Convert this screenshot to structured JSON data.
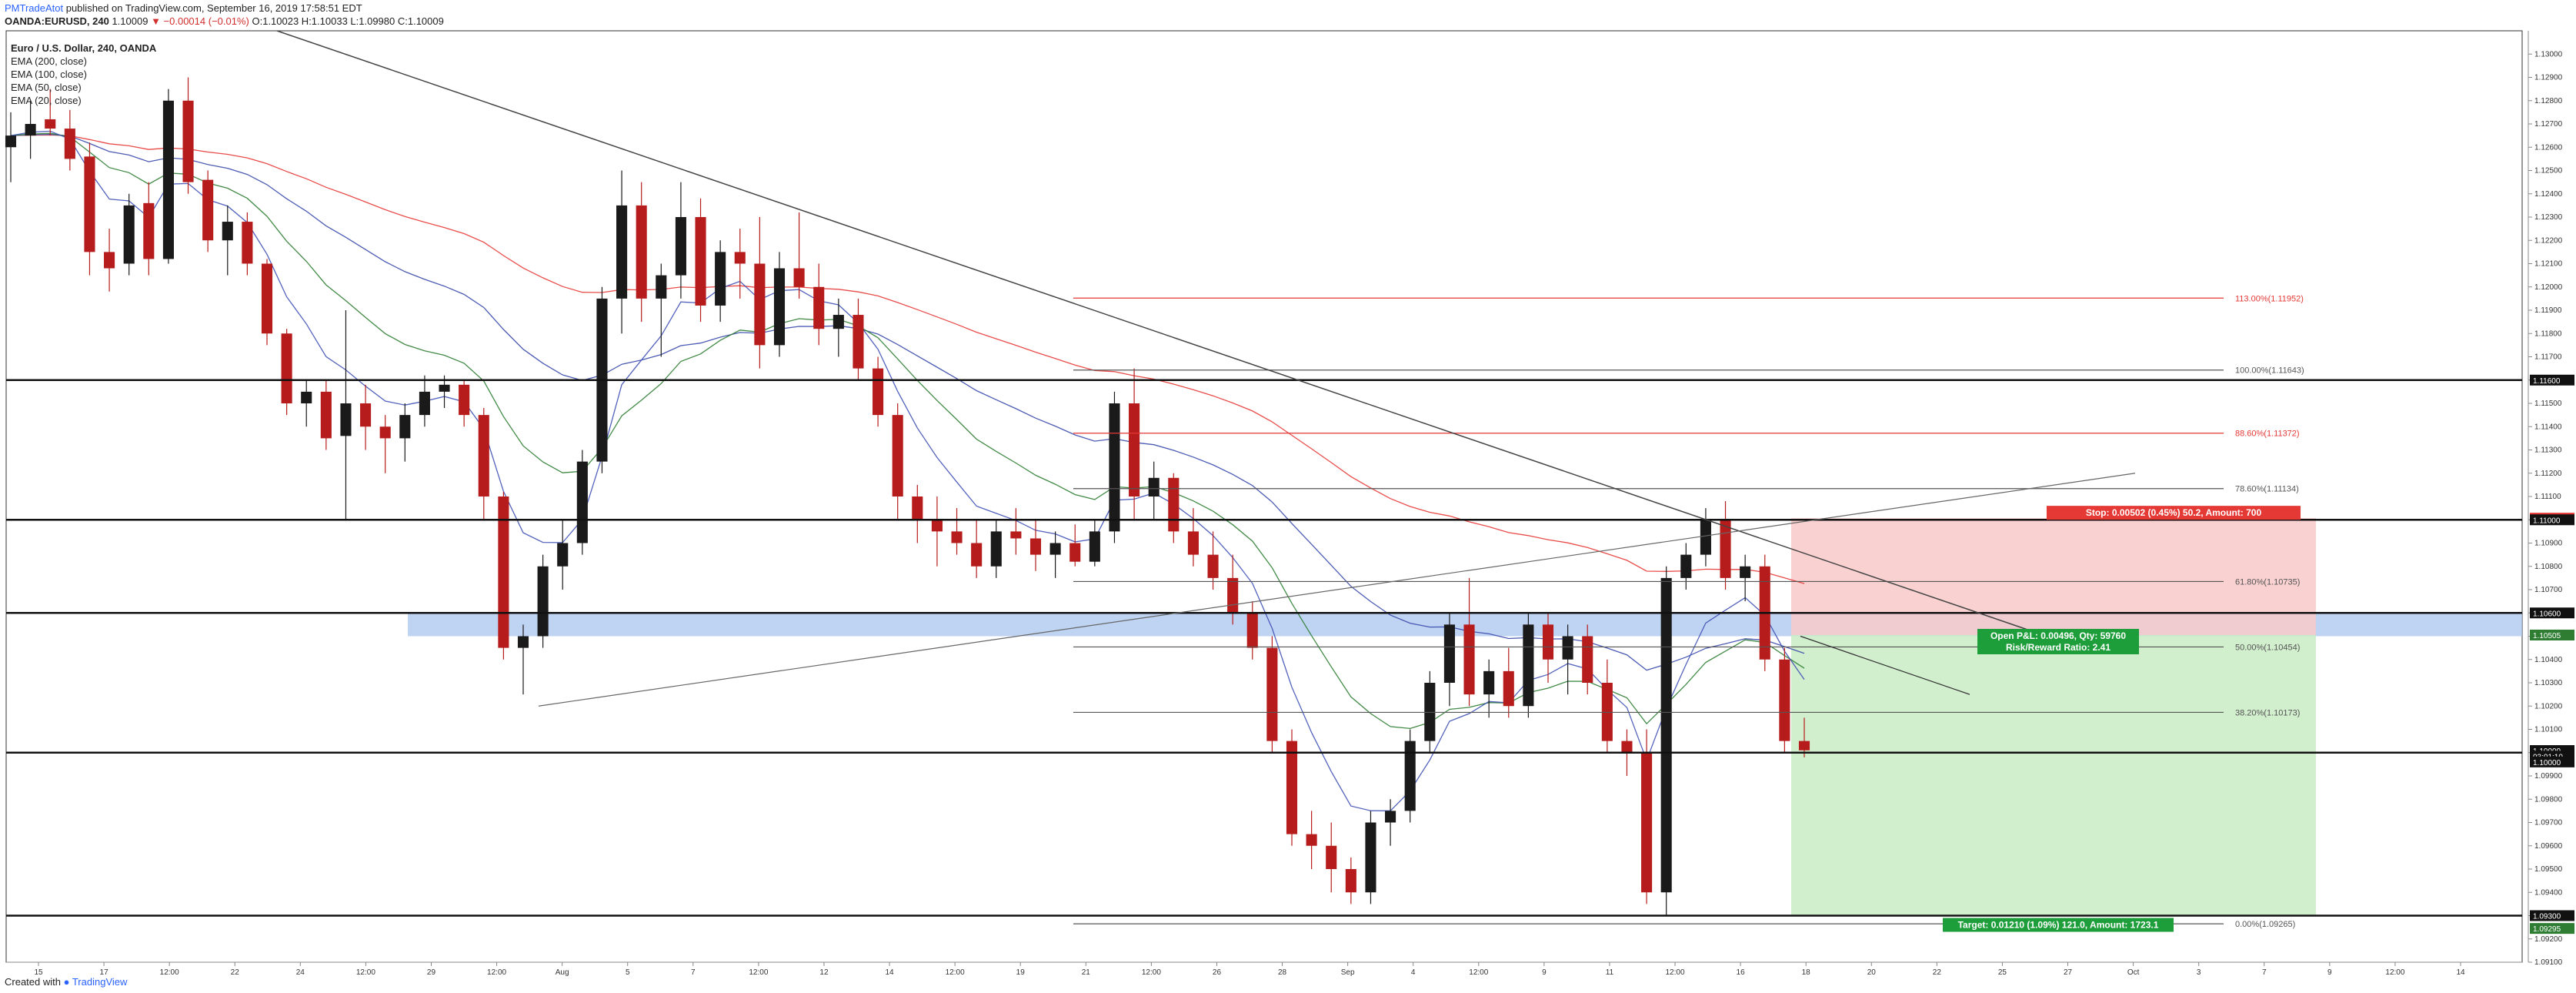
{
  "header": {
    "user": "PMTradeAtot",
    "published": " published on TradingView.com, September 16, 2019 17:58:51 EDT",
    "symbol_line": "OANDA:EURUSD, 240",
    "price_main": "1.10009",
    "change": "▼ −0.00014 (−0.01%)",
    "ohlc": "O:1.10023 H:1.10033 L:1.09980 C:1.10009"
  },
  "legend": {
    "title": "Euro / U.S. Dollar, 240, OANDA",
    "items": [
      "EMA (200, close)",
      "EMA (100, close)",
      "EMA (50, close)",
      "EMA (20, close)"
    ]
  },
  "footer": {
    "created": "Created with",
    "brand": "TradingView"
  },
  "colors": {
    "up": "#1a1a1a",
    "down": "#b71c1c",
    "ema200": "#e53935",
    "ema100": "#3949ab",
    "ema50": "#2e7d32",
    "ema20": "#3f51b5",
    "stop_zone": "#f8c9c9",
    "target_zone": "#c9ebc4"
  },
  "chart_data": {
    "type": "candlestick",
    "symbol": "EURUSD",
    "timeframe": "240",
    "ylim": [
      1.091,
      1.131
    ],
    "y_ticks": [
      "1.09100",
      "1.09200",
      "1.09300",
      "1.09400",
      "1.09500",
      "1.09600",
      "1.09700",
      "1.09800",
      "1.09900",
      "1.10000",
      "1.10100",
      "1.10200",
      "1.10300",
      "1.10400",
      "1.10500",
      "1.10600",
      "1.10700",
      "1.10800",
      "1.10900",
      "1.11000",
      "1.11100",
      "1.11200",
      "1.11300",
      "1.11400",
      "1.11500",
      "1.11600",
      "1.11700",
      "1.11800",
      "1.11900",
      "1.12000",
      "1.12100",
      "1.12200",
      "1.12300",
      "1.12400",
      "1.12500",
      "1.12600",
      "1.12700",
      "1.12800",
      "1.12900",
      "1.13000"
    ],
    "x_ticks": [
      "15",
      "17",
      "12:00",
      "22",
      "24",
      "12:00",
      "29",
      "12:00",
      "Aug",
      "5",
      "7",
      "12:00",
      "12",
      "14",
      "12:00",
      "19",
      "21",
      "12:00",
      "26",
      "28",
      "Sep",
      "4",
      "12:00",
      "9",
      "11",
      "12:00",
      "16",
      "18",
      "20",
      "22",
      "25",
      "27",
      "Oct",
      "3",
      "7",
      "9",
      "12:00",
      "14"
    ],
    "price_tags": [
      "1.11600",
      "1.11007",
      "1.11000",
      "1.10600",
      "1.10505",
      "1.10009",
      "03:01:10",
      "1.10000",
      "1.09300",
      "1.09295"
    ],
    "fib_levels": [
      {
        "label": "113.00%(1.11952)",
        "price": 1.11952,
        "color": "#e53935"
      },
      {
        "label": "100.00%(1.11643)",
        "price": 1.11643,
        "color": "#555555"
      },
      {
        "label": "88.60%(1.11372)",
        "price": 1.11372,
        "color": "#e53935"
      },
      {
        "label": "78.60%(1.11134)",
        "price": 1.11134,
        "color": "#555555"
      },
      {
        "label": "61.80%(1.10735)",
        "price": 1.10735,
        "color": "#555555"
      },
      {
        "label": "50.00%(1.10454)",
        "price": 1.10454,
        "color": "#555555"
      },
      {
        "label": "38.20%(1.10173)",
        "price": 1.10173,
        "color": "#555555"
      },
      {
        "label": "0.00%(1.09265)",
        "price": 1.09265,
        "color": "#555555"
      }
    ],
    "horizontal_levels": [
      1.116,
      1.11,
      1.106,
      1.1,
      1.093
    ],
    "support_zone": [
      1.105,
      1.106
    ],
    "position": {
      "entry": 1.10505,
      "stop": 1.11007,
      "target": 1.093,
      "stop_label": "Stop: 0.00502 (0.45%) 50.2, Amount: 700",
      "pnl_label": "Open P&L: 0.00496, Qty: 59760",
      "rr_label": "Risk/Reward Ratio: 2.41",
      "target_label": "Target: 0.01210 (1.09%) 121.0, Amount: 1723.1"
    },
    "candles": [
      [
        1.126,
        1.1275,
        1.1245,
        1.1265
      ],
      [
        1.1265,
        1.128,
        1.1255,
        1.127
      ],
      [
        1.1272,
        1.1285,
        1.1265,
        1.1268
      ],
      [
        1.1268,
        1.1276,
        1.125,
        1.1255
      ],
      [
        1.1256,
        1.1262,
        1.1205,
        1.1215
      ],
      [
        1.1215,
        1.1225,
        1.1198,
        1.1208
      ],
      [
        1.121,
        1.124,
        1.1205,
        1.1235
      ],
      [
        1.1236,
        1.1245,
        1.1205,
        1.1212
      ],
      [
        1.1212,
        1.1285,
        1.121,
        1.128
      ],
      [
        1.128,
        1.129,
        1.124,
        1.1245
      ],
      [
        1.1246,
        1.125,
        1.1215,
        1.122
      ],
      [
        1.122,
        1.1235,
        1.1205,
        1.1228
      ],
      [
        1.1228,
        1.1232,
        1.1205,
        1.121
      ],
      [
        1.121,
        1.1212,
        1.1175,
        1.118
      ],
      [
        1.118,
        1.1182,
        1.1145,
        1.115
      ],
      [
        1.115,
        1.116,
        1.114,
        1.1155
      ],
      [
        1.1155,
        1.116,
        1.113,
        1.1135
      ],
      [
        1.1136,
        1.119,
        1.11,
        1.115
      ],
      [
        1.115,
        1.1158,
        1.113,
        1.114
      ],
      [
        1.114,
        1.1145,
        1.112,
        1.1135
      ],
      [
        1.1135,
        1.115,
        1.1125,
        1.1145
      ],
      [
        1.1145,
        1.1162,
        1.114,
        1.1155
      ],
      [
        1.1155,
        1.1162,
        1.1148,
        1.1158
      ],
      [
        1.1158,
        1.116,
        1.114,
        1.1145
      ],
      [
        1.1145,
        1.1148,
        1.11,
        1.111
      ],
      [
        1.111,
        1.1112,
        1.104,
        1.1045
      ],
      [
        1.1045,
        1.1055,
        1.1025,
        1.105
      ],
      [
        1.105,
        1.1085,
        1.1045,
        1.108
      ],
      [
        1.108,
        1.11,
        1.107,
        1.109
      ],
      [
        1.109,
        1.113,
        1.1085,
        1.1125
      ],
      [
        1.1125,
        1.12,
        1.112,
        1.1195
      ],
      [
        1.1195,
        1.125,
        1.118,
        1.1235
      ],
      [
        1.1235,
        1.1245,
        1.1185,
        1.1195
      ],
      [
        1.1195,
        1.121,
        1.117,
        1.1205
      ],
      [
        1.1205,
        1.1245,
        1.1195,
        1.123
      ],
      [
        1.123,
        1.1238,
        1.1185,
        1.1192
      ],
      [
        1.1192,
        1.122,
        1.1185,
        1.1215
      ],
      [
        1.1215,
        1.1225,
        1.1195,
        1.121
      ],
      [
        1.121,
        1.123,
        1.1165,
        1.1175
      ],
      [
        1.1175,
        1.1215,
        1.117,
        1.1208
      ],
      [
        1.1208,
        1.1232,
        1.1195,
        1.12
      ],
      [
        1.12,
        1.121,
        1.1175,
        1.1182
      ],
      [
        1.1182,
        1.1195,
        1.117,
        1.1188
      ],
      [
        1.1188,
        1.1195,
        1.116,
        1.1165
      ],
      [
        1.1165,
        1.117,
        1.114,
        1.1145
      ],
      [
        1.1145,
        1.115,
        1.11,
        1.111
      ],
      [
        1.111,
        1.1115,
        1.109,
        1.11
      ],
      [
        1.11,
        1.111,
        1.108,
        1.1095
      ],
      [
        1.1095,
        1.1105,
        1.1085,
        1.109
      ],
      [
        1.109,
        1.11,
        1.1075,
        1.108
      ],
      [
        1.108,
        1.11,
        1.1075,
        1.1095
      ],
      [
        1.1095,
        1.1105,
        1.1085,
        1.1092
      ],
      [
        1.1092,
        1.11,
        1.1078,
        1.1085
      ],
      [
        1.1085,
        1.1095,
        1.1075,
        1.109
      ],
      [
        1.109,
        1.1098,
        1.108,
        1.1082
      ],
      [
        1.1082,
        1.11,
        1.108,
        1.1095
      ],
      [
        1.1095,
        1.1155,
        1.109,
        1.115
      ],
      [
        1.115,
        1.1165,
        1.11,
        1.111
      ],
      [
        1.111,
        1.1125,
        1.11,
        1.1118
      ],
      [
        1.1118,
        1.112,
        1.109,
        1.1095
      ],
      [
        1.1095,
        1.1105,
        1.108,
        1.1085
      ],
      [
        1.1085,
        1.1095,
        1.107,
        1.1075
      ],
      [
        1.1075,
        1.1085,
        1.1055,
        1.106
      ],
      [
        1.106,
        1.1065,
        1.104,
        1.1045
      ],
      [
        1.1045,
        1.105,
        1.1,
        1.1005
      ],
      [
        1.1005,
        1.101,
        1.096,
        1.0965
      ],
      [
        1.0965,
        1.0975,
        1.095,
        1.096
      ],
      [
        1.096,
        1.097,
        1.094,
        1.095
      ],
      [
        1.095,
        1.0955,
        1.0935,
        1.094
      ],
      [
        1.094,
        1.0975,
        1.0935,
        1.097
      ],
      [
        1.097,
        1.098,
        1.096,
        1.0975
      ],
      [
        1.0975,
        1.101,
        1.097,
        1.1005
      ],
      [
        1.1005,
        1.1035,
        1.1,
        1.103
      ],
      [
        1.103,
        1.106,
        1.102,
        1.1055
      ],
      [
        1.1055,
        1.1075,
        1.102,
        1.1025
      ],
      [
        1.1025,
        1.104,
        1.1015,
        1.1035
      ],
      [
        1.1035,
        1.1045,
        1.1015,
        1.102
      ],
      [
        1.102,
        1.106,
        1.1015,
        1.1055
      ],
      [
        1.1055,
        1.106,
        1.103,
        1.104
      ],
      [
        1.104,
        1.1055,
        1.1025,
        1.105
      ],
      [
        1.105,
        1.1055,
        1.1025,
        1.103
      ],
      [
        1.103,
        1.104,
        1.1,
        1.1005
      ],
      [
        1.1005,
        1.101,
        1.099,
        1.1
      ],
      [
        1.1,
        1.101,
        1.0935,
        1.094
      ],
      [
        1.094,
        1.108,
        1.093,
        1.1075
      ],
      [
        1.1075,
        1.109,
        1.107,
        1.1085
      ],
      [
        1.1085,
        1.1105,
        1.108,
        1.11
      ],
      [
        1.11,
        1.1108,
        1.107,
        1.1075
      ],
      [
        1.1075,
        1.1085,
        1.1065,
        1.108
      ],
      [
        1.108,
        1.1085,
        1.1035,
        1.104
      ],
      [
        1.104,
        1.1045,
        1.1,
        1.1005
      ],
      [
        1.1005,
        1.1015,
        1.0998,
        1.1001
      ]
    ]
  }
}
